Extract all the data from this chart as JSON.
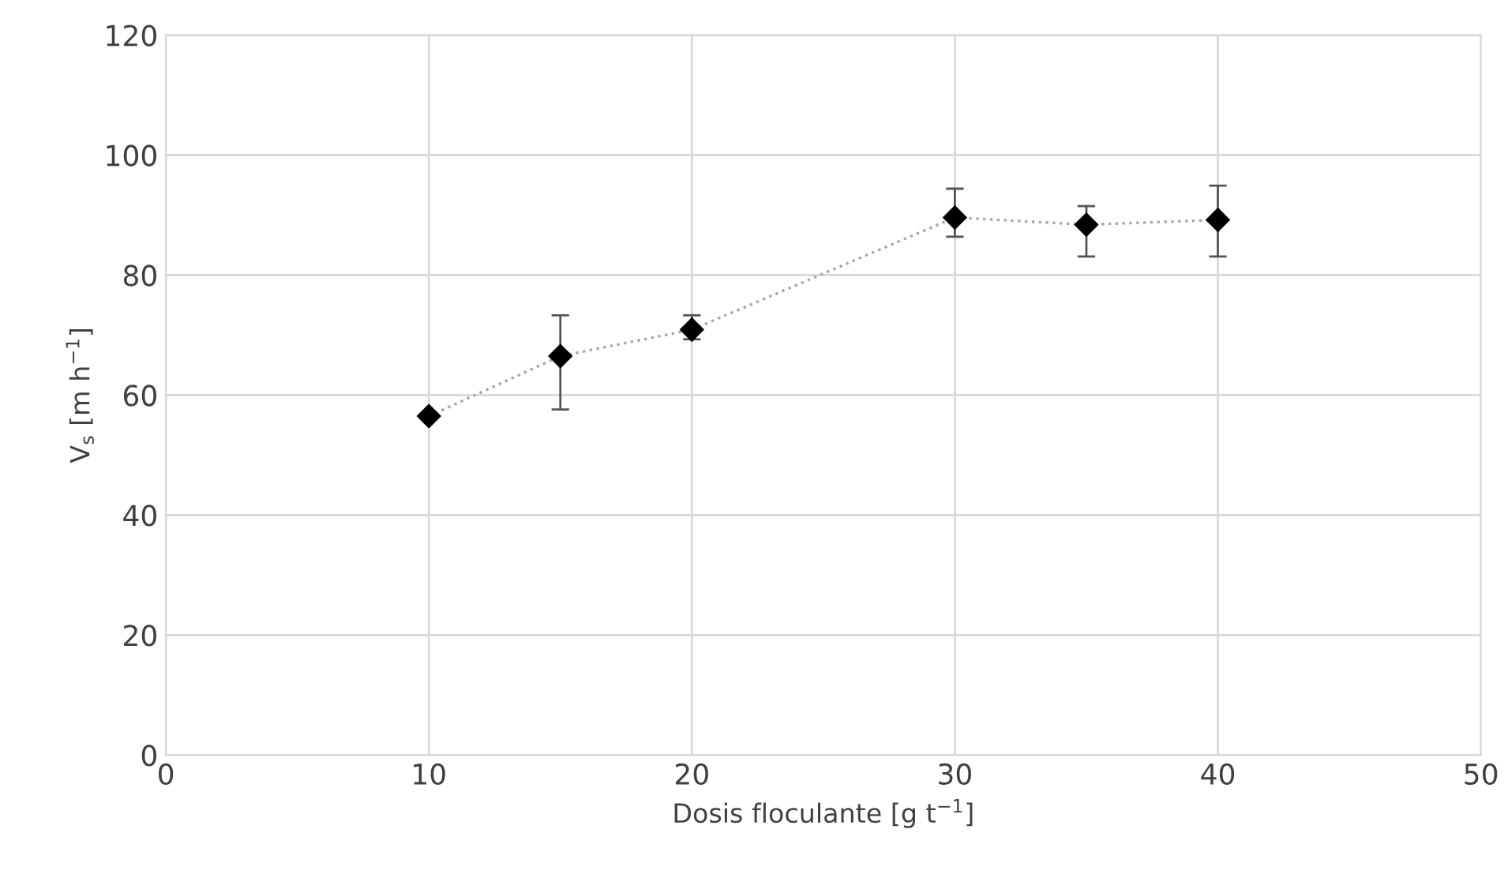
{
  "chart_data": {
    "type": "line",
    "xlabel": "Dosis floculante [g t$^{−1}$]",
    "ylabel": "V$_{s}$ [m h$^{−1}$]",
    "x": [
      10,
      15,
      20,
      30,
      35,
      40
    ],
    "series": [
      {
        "color": "#000000",
        "values": [
          56.5,
          66.5,
          70.9,
          89.6,
          88.4,
          89.2
        ],
        "errors": [
          null,
          [
            57.6,
            73.3
          ],
          [
            69.3,
            73.3
          ],
          [
            86.4,
            94.4
          ],
          [
            83.1,
            91.5
          ],
          [
            83.1,
            94.9
          ]
        ]
      }
    ],
    "marker": "diamond",
    "line_style": "dotted",
    "grid": true,
    "xlim": [
      0,
      50
    ],
    "xticks": [
      0,
      10,
      20,
      30,
      40,
      50
    ],
    "ylim": [
      0,
      120
    ],
    "yticks": [
      0,
      20,
      40,
      60,
      80,
      100,
      120
    ]
  }
}
